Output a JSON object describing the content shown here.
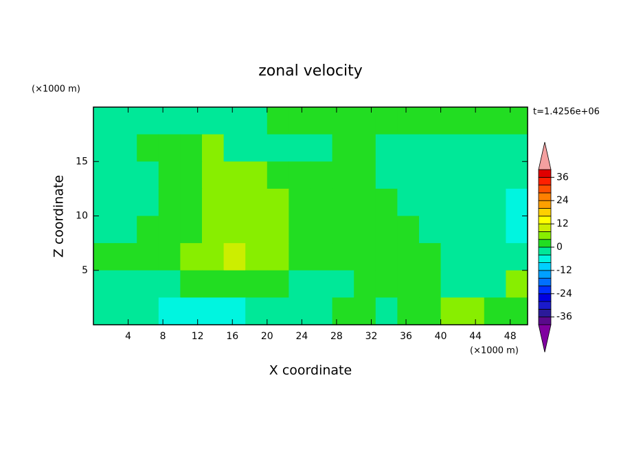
{
  "chart_data": {
    "type": "contour",
    "title": "zonal velocity",
    "x_label": "X coordinate",
    "y_label": "Z coordinate",
    "x_unit": "(×1000 m)",
    "y_unit": "(×1000 m)",
    "time_label": "t=1.4256e+06",
    "xlim": [
      0,
      50
    ],
    "xticks": [
      4,
      8,
      12,
      16,
      20,
      24,
      28,
      32,
      36,
      40,
      44,
      48
    ],
    "ylim": [
      0,
      20
    ],
    "yticks": [
      5,
      10,
      15
    ],
    "z": [
      [
        -2,
        -2,
        -2,
        -2,
        -2,
        -2,
        -2,
        -2,
        2,
        2,
        2,
        2,
        2,
        2,
        2,
        2,
        2,
        2,
        2,
        2
      ],
      [
        -2,
        -2,
        2,
        2,
        2,
        6,
        -2,
        -2,
        -2,
        -2,
        -2,
        2,
        2,
        -2,
        -2,
        -2,
        -2,
        -2,
        -2,
        -2
      ],
      [
        -2,
        -2,
        -2,
        2,
        2,
        6,
        6,
        6,
        2,
        2,
        2,
        2,
        2,
        -2,
        -2,
        -2,
        -2,
        -2,
        -2,
        -2
      ],
      [
        -2,
        -2,
        -2,
        2,
        2,
        6,
        6,
        6,
        6,
        2,
        2,
        2,
        2,
        2,
        -2,
        -2,
        -2,
        -2,
        -2,
        -6
      ],
      [
        -2,
        -2,
        2,
        2,
        2,
        6,
        6,
        6,
        6,
        2,
        2,
        2,
        2,
        2,
        2,
        -2,
        -2,
        -2,
        -2,
        -6
      ],
      [
        2,
        2,
        2,
        2,
        6,
        6,
        10,
        6,
        6,
        2,
        2,
        2,
        2,
        2,
        2,
        2,
        -2,
        -2,
        -2,
        -2
      ],
      [
        -2,
        -2,
        -2,
        -2,
        2,
        2,
        2,
        2,
        2,
        -2,
        -2,
        -2,
        2,
        2,
        2,
        2,
        -2,
        -2,
        -2,
        6
      ],
      [
        -2,
        -2,
        -2,
        -6,
        -6,
        -6,
        -6,
        -2,
        -2,
        -2,
        -2,
        2,
        2,
        -2,
        2,
        2,
        6,
        6,
        2,
        2
      ]
    ],
    "levels": [
      -40,
      -36,
      -32,
      -28,
      -24,
      -20,
      -16,
      -12,
      -8,
      -4,
      0,
      4,
      8,
      12,
      16,
      20,
      24,
      28,
      32,
      36,
      40
    ],
    "colors": [
      "#5a0a8c",
      "#2a1a9a",
      "#1a1acc",
      "#0000e0",
      "#0030ff",
      "#0070ff",
      "#00a0ff",
      "#00d0ff",
      "#00f5e0",
      "#00e898",
      "#22dd22",
      "#88ee00",
      "#ccee00",
      "#ffff00",
      "#ffd000",
      "#ffa000",
      "#ff8000",
      "#ff5000",
      "#ff2000",
      "#e00000"
    ],
    "colorbar_ticks": [
      -36,
      -24,
      -12,
      0,
      12,
      24,
      36
    ],
    "extend_low_color": "#8000a0",
    "extend_high_color": "#f4a0a0"
  }
}
